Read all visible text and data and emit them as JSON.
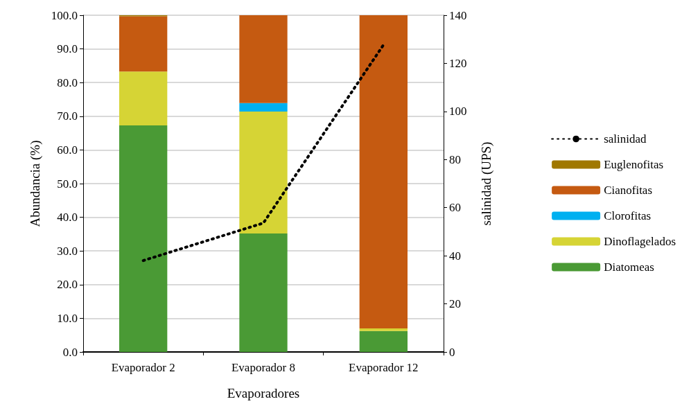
{
  "chart_data": {
    "type": "bar",
    "stacked": true,
    "xlabel": "Evaporadores",
    "ylabel": "Abundancia (%)",
    "y2label": "salinidad (UPS)",
    "categories": [
      "Evaporador 2",
      "Evaporador 8",
      "Evaporador 12"
    ],
    "series": [
      {
        "name": "Diatomeas",
        "color": "#4a9a35",
        "values": [
          67.3,
          35.2,
          6.2
        ]
      },
      {
        "name": "Dinoflagelados",
        "color": "#d6d435",
        "values": [
          16.0,
          36.2,
          0.8
        ]
      },
      {
        "name": "Clorofitas",
        "color": "#00b0f0",
        "values": [
          0,
          2.5,
          0
        ]
      },
      {
        "name": "Cianofitas",
        "color": "#c55a11",
        "values": [
          16.4,
          26.1,
          93.0
        ]
      },
      {
        "name": "Euglenofitas",
        "color": "#a07800",
        "values": [
          0.3,
          0,
          0
        ]
      },
      {
        "name": "salinidad",
        "type": "line",
        "axis": "y2",
        "color": "#000000",
        "line_style": "dotted",
        "marker": "none",
        "values": [
          38,
          53.6,
          127.7
        ]
      }
    ],
    "ylim": [
      0,
      100
    ],
    "yticks": [
      {
        "value": 0,
        "label": "0.0"
      },
      {
        "value": 10,
        "label": "10.0"
      },
      {
        "value": 20,
        "label": "20.0"
      },
      {
        "value": 30,
        "label": "30.0"
      },
      {
        "value": 40,
        "label": "40.0"
      },
      {
        "value": 50,
        "label": "50.0"
      },
      {
        "value": 60,
        "label": "60.0"
      },
      {
        "value": 70,
        "label": "70.0"
      },
      {
        "value": 80,
        "label": "80.0"
      },
      {
        "value": 90,
        "label": "90.0"
      },
      {
        "value": 100,
        "label": "100.0"
      }
    ],
    "y2lim": [
      0,
      140
    ],
    "y2ticks": [
      0,
      20,
      40,
      60,
      80,
      100,
      120,
      140
    ],
    "grid": "y",
    "legend": "right"
  }
}
